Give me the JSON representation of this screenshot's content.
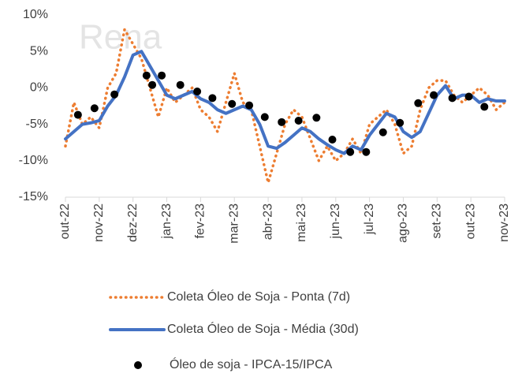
{
  "chart_data": {
    "type": "line",
    "watermark": "Rena",
    "xlim": [
      0,
      13
    ],
    "xticks": [
      {
        "value": 0,
        "label": "out-22"
      },
      {
        "value": 1,
        "label": "nov-22"
      },
      {
        "value": 2,
        "label": "dez-22"
      },
      {
        "value": 3,
        "label": "jan-23"
      },
      {
        "value": 4,
        "label": "fev-23"
      },
      {
        "value": 5,
        "label": "mar-23"
      },
      {
        "value": 6,
        "label": "abr-23"
      },
      {
        "value": 7,
        "label": "mai-23"
      },
      {
        "value": 8,
        "label": "jun-23"
      },
      {
        "value": 9,
        "label": "jul-23"
      },
      {
        "value": 10,
        "label": "ago-23"
      },
      {
        "value": 11,
        "label": "set-23"
      },
      {
        "value": 12,
        "label": "out-23"
      },
      {
        "value": 13,
        "label": "nov-23"
      }
    ],
    "ylim": [
      -15,
      10
    ],
    "yticks": [
      {
        "value": 10,
        "label": "10%"
      },
      {
        "value": 5,
        "label": "5%"
      },
      {
        "value": 0,
        "label": "0%"
      },
      {
        "value": -5,
        "label": "-5%"
      },
      {
        "value": -10,
        "label": "-10%"
      },
      {
        "value": -15,
        "label": "-15%"
      }
    ],
    "series": [
      {
        "name": "Coleta Óleo de Soja - Ponta (7d)",
        "color": "#ed7d31",
        "style": "dotted",
        "x": [
          0,
          0.25,
          0.5,
          0.75,
          1,
          1.25,
          1.5,
          1.75,
          2,
          2.25,
          2.5,
          2.75,
          3,
          3.25,
          3.5,
          3.75,
          4,
          4.25,
          4.5,
          4.75,
          5,
          5.25,
          5.5,
          5.75,
          6,
          6.25,
          6.5,
          6.75,
          7,
          7.25,
          7.5,
          7.75,
          8,
          8.25,
          8.5,
          8.75,
          9,
          9.25,
          9.5,
          9.75,
          10,
          10.25,
          10.5,
          10.75,
          11,
          11.25,
          11.5,
          11.75,
          12,
          12.25,
          12.5,
          12.75,
          13
        ],
        "values": [
          -8,
          -2,
          -5,
          -4,
          -5.5,
          0,
          2,
          8,
          6,
          4,
          0,
          -4,
          0,
          -2,
          -1,
          0,
          -3,
          -4,
          -6,
          -2,
          2,
          -2,
          -3,
          -8,
          -13,
          -9,
          -5,
          -3,
          -4,
          -7,
          -10,
          -8,
          -10,
          -9,
          -7,
          -9,
          -5,
          -4,
          -3,
          -5,
          -9,
          -8,
          -3,
          0,
          1,
          1,
          -1,
          -2,
          -1,
          0,
          -1,
          -3,
          -2
        ]
      },
      {
        "name": "Coleta Óleo de Soja - Média (30d)",
        "color": "#4472c4",
        "style": "solid",
        "x": [
          0,
          0.25,
          0.5,
          0.75,
          1,
          1.25,
          1.5,
          1.75,
          2,
          2.25,
          2.5,
          2.75,
          3,
          3.25,
          3.5,
          3.75,
          4,
          4.25,
          4.5,
          4.75,
          5,
          5.25,
          5.5,
          5.75,
          6,
          6.25,
          6.5,
          6.75,
          7,
          7.25,
          7.5,
          7.75,
          8,
          8.25,
          8.5,
          8.75,
          9,
          9.25,
          9.5,
          9.75,
          10,
          10.25,
          10.5,
          10.75,
          11,
          11.25,
          11.5,
          11.75,
          12,
          12.25,
          12.5,
          12.75,
          13
        ],
        "values": [
          -7,
          -6,
          -5,
          -4.8,
          -4.5,
          -2.5,
          -1,
          1.5,
          4.5,
          5,
          3,
          1,
          -1,
          -1.5,
          -1,
          -0.5,
          -1.5,
          -2,
          -3,
          -3.5,
          -3,
          -2.5,
          -3,
          -5,
          -8,
          -8.3,
          -7.5,
          -6.5,
          -5.5,
          -6,
          -7,
          -7.8,
          -8.5,
          -9,
          -8,
          -8.5,
          -6.5,
          -5,
          -3.5,
          -4,
          -6,
          -6.8,
          -6,
          -3.5,
          -1,
          0.3,
          -1.5,
          -1,
          -1,
          -2,
          -1.5,
          -1.8,
          -1.8
        ]
      },
      {
        "name": "Óleo de soja  - IPCA-15/IPCA",
        "color": "#000000",
        "style": "markers",
        "x": [
          0.37,
          0.86,
          1.45,
          2.4,
          2.57,
          2.85,
          3.4,
          3.9,
          4.35,
          4.93,
          5.44,
          5.9,
          6.4,
          6.9,
          7.43,
          7.9,
          8.43,
          8.9,
          9.4,
          9.9,
          10.44,
          10.9,
          11.45,
          11.94,
          12.4
        ],
        "values": [
          -3.7,
          -2.8,
          -0.9,
          1.7,
          0.4,
          1.7,
          0.4,
          -0.5,
          -1.4,
          -2.2,
          -2.4,
          -4,
          -4.7,
          -4.5,
          -4.1,
          -7.1,
          -8.8,
          -8.8,
          -6.1,
          -4.8,
          -2.1,
          -1,
          -1.4,
          -1.2,
          -2.6
        ]
      }
    ]
  }
}
